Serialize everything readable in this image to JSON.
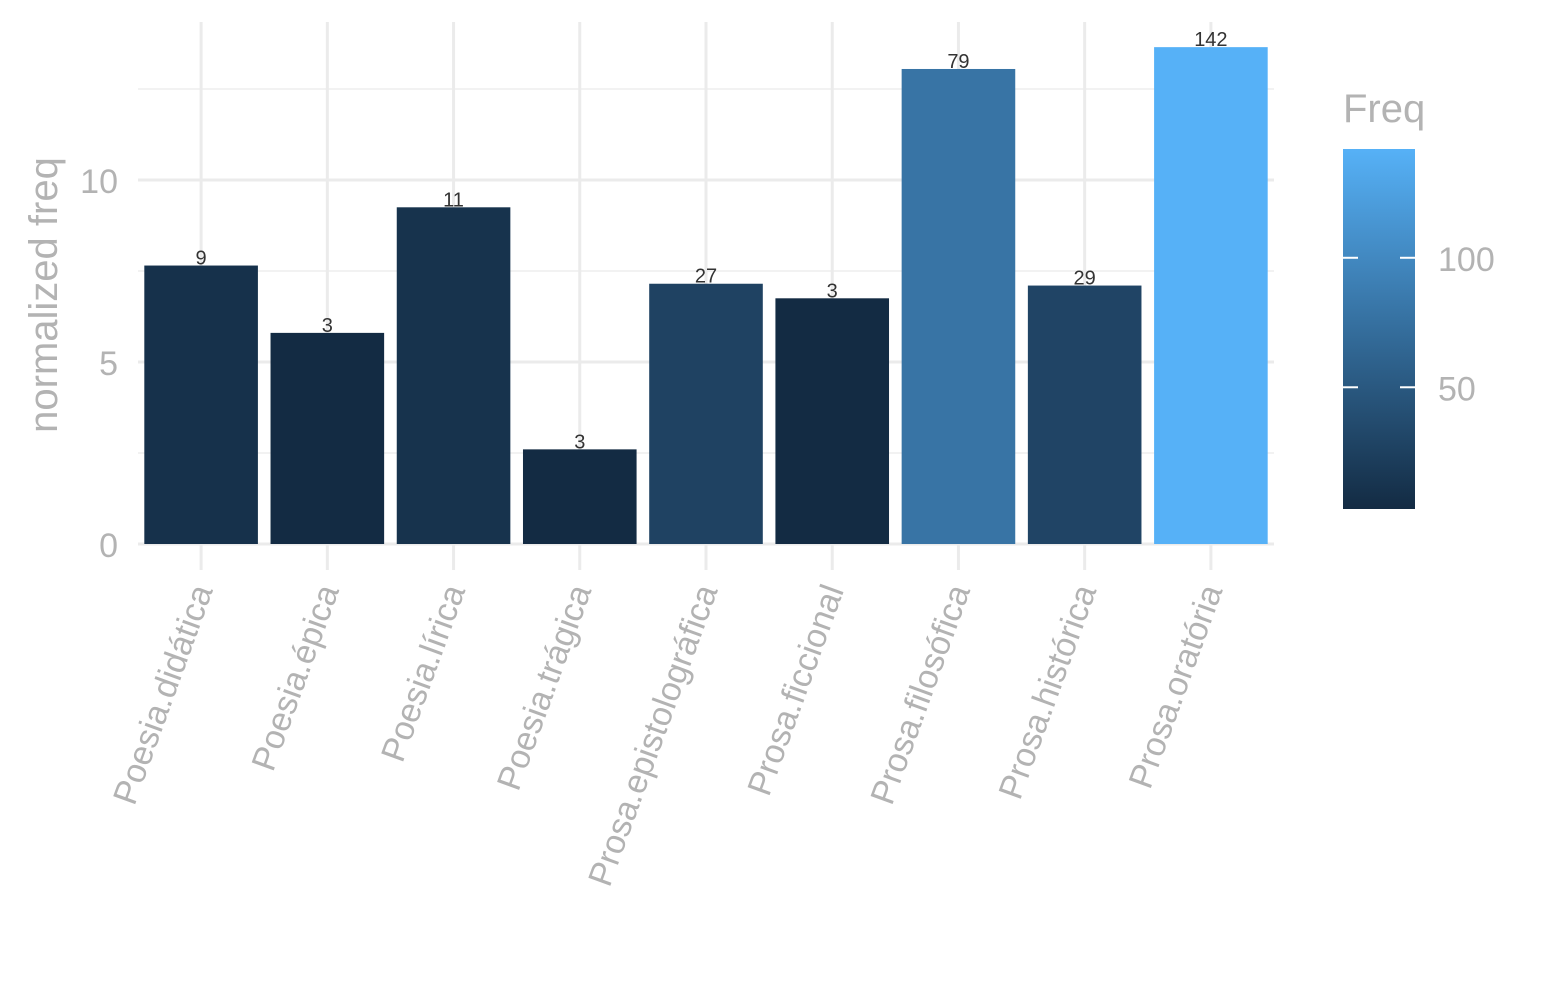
{
  "chart_data": {
    "type": "bar",
    "categories": [
      "Poesia.didática",
      "Poesia.épica",
      "Poesia.lírica",
      "Poesia.trágica",
      "Prosa.epistolográfica",
      "Prosa.ficcional",
      "Prosa.filosófica",
      "Prosa.histórica",
      "Prosa.oratória"
    ],
    "values": [
      7.65,
      5.8,
      9.25,
      2.6,
      7.15,
      6.75,
      13.05,
      7.1,
      13.65
    ],
    "freq": [
      9,
      3,
      11,
      3,
      27,
      3,
      79,
      29,
      142
    ],
    "bar_labels": [
      "9",
      "3",
      "11",
      "3",
      "27",
      "3",
      "79",
      "29",
      "142"
    ],
    "ylabel": "normalized freq",
    "xlabel": "",
    "ylim": [
      0,
      14
    ],
    "yticks": [
      "0",
      "5",
      "10"
    ],
    "grid": true,
    "legend": {
      "title": "Freq",
      "position": "right",
      "range": [
        3,
        142
      ],
      "ticks": [
        "50",
        "100"
      ],
      "color_low": "#132B43",
      "color_high": "#56B1F7"
    }
  }
}
